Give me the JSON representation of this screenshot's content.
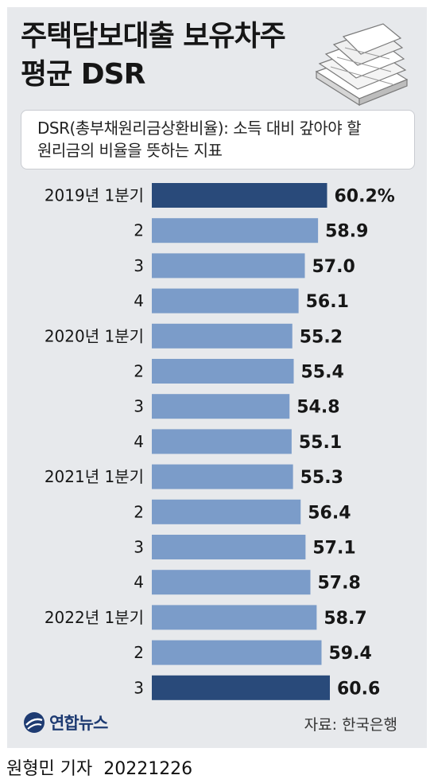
{
  "header": {
    "title_line1": "주택담보대출 보유차주",
    "title_line2": "평균 DSR",
    "note_line1": "DSR(총부채원리금상환비율): 소득 대비 갚아야 할",
    "note_line2": "원리금의 비율을 뜻하는 지표"
  },
  "footer": {
    "logo_text": "연합뉴스",
    "source": "자료: 한국은행",
    "reporter": "원형민 기자",
    "date": "20221226"
  },
  "colors": {
    "bar_regular": "#7b9cc9",
    "bar_highlight": "#294a7a",
    "background": "#e7e9ec",
    "logo": "#1e3b72"
  },
  "chart_data": {
    "type": "bar",
    "orientation": "horizontal",
    "categories": [
      "2019년 1분기",
      "2",
      "3",
      "4",
      "2020년 1분기",
      "2",
      "3",
      "4",
      "2021년 1분기",
      "2",
      "3",
      "4",
      "2022년 1분기",
      "2",
      "3"
    ],
    "values": [
      60.2,
      58.9,
      57.0,
      56.1,
      55.2,
      55.4,
      54.8,
      55.1,
      55.3,
      56.4,
      57.1,
      57.8,
      58.7,
      59.4,
      60.6
    ],
    "value_labels": [
      "60.2%",
      "58.9",
      "57.0",
      "56.1",
      "55.2",
      "55.4",
      "54.8",
      "55.1",
      "55.3",
      "56.4",
      "57.1",
      "57.8",
      "58.7",
      "59.4",
      "60.6"
    ],
    "highlight": [
      true,
      false,
      false,
      false,
      false,
      false,
      false,
      false,
      false,
      false,
      false,
      false,
      false,
      false,
      true
    ],
    "unit": "%",
    "xlabel": "",
    "ylabel": "",
    "grid": false
  }
}
